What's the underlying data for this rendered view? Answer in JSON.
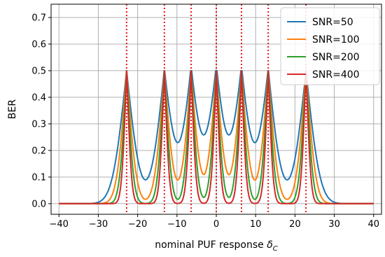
{
  "chart_data": {
    "type": "line",
    "title": "",
    "xlabel_prefix": "nominal PUF response ",
    "xlabel_symbol": "δ",
    "xlabel_subscript": "C",
    "ylabel": "BER",
    "xlim": [
      -42,
      42
    ],
    "ylim": [
      -0.04,
      0.75
    ],
    "xticks": [
      -40,
      -30,
      -20,
      -10,
      0,
      10,
      20,
      30,
      40
    ],
    "yticks": [
      0.0,
      0.1,
      0.2,
      0.3,
      0.4,
      0.5,
      0.6,
      0.7
    ],
    "xtick_labels": [
      "−40",
      "−30",
      "−20",
      "−10",
      "0",
      "10",
      "20",
      "30",
      "40"
    ],
    "ytick_labels": [
      "0.0",
      "0.1",
      "0.2",
      "0.3",
      "0.4",
      "0.5",
      "0.6",
      "0.7"
    ],
    "grid": true,
    "legend_position": "top-right",
    "thresholds": [
      -22.8,
      -13.2,
      -6.4,
      0,
      6.4,
      13.2,
      22.8
    ],
    "threshold_color": "#e41a1c",
    "series": [
      {
        "name": "SNR=50",
        "snr": 50,
        "color": "#1f77b4"
      },
      {
        "name": "SNR=100",
        "snr": 100,
        "color": "#ff7f0e"
      },
      {
        "name": "SNR=200",
        "snr": 200,
        "color": "#2ca02c"
      },
      {
        "name": "SNR=400",
        "snr": 400,
        "color": "#d62728"
      }
    ]
  }
}
